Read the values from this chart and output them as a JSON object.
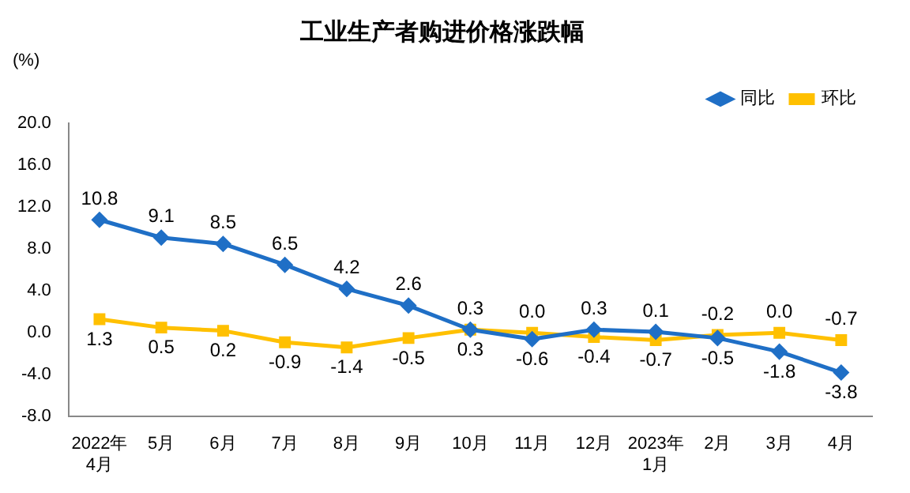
{
  "chart_data": {
    "type": "line",
    "title": "工业生产者购进价格涨跌幅",
    "ylabel": "(%)",
    "categories": [
      "2022年\n4月",
      "5月",
      "6月",
      "7月",
      "8月",
      "9月",
      "10月",
      "11月",
      "12月",
      "2023年\n1月",
      "2月",
      "3月",
      "4月"
    ],
    "series": [
      {
        "name": "同比",
        "color": "#1f6fc6",
        "marker": "diamond",
        "values": [
          10.8,
          9.1,
          8.5,
          6.5,
          4.2,
          2.6,
          0.3,
          -0.6,
          0.3,
          0.1,
          -0.5,
          -1.8,
          -3.8
        ],
        "value_labels": [
          "10.8",
          "9.1",
          "8.5",
          "6.5",
          "4.2",
          "2.6",
          "0.3",
          "-0.6",
          "0.3",
          "0.1",
          "-0.5",
          "-1.8",
          "-3.8"
        ]
      },
      {
        "name": "环比",
        "color": "#ffc000",
        "marker": "square",
        "values": [
          1.3,
          0.5,
          0.2,
          -0.9,
          -1.4,
          -0.5,
          0.3,
          0.0,
          -0.4,
          -0.7,
          -0.2,
          0.0,
          -0.7
        ],
        "value_labels": [
          "1.3",
          "0.5",
          "0.2",
          "-0.9",
          "-1.4",
          "-0.5",
          "0.3",
          "0.0",
          "-0.4",
          "-0.7",
          "-0.2",
          "0.0",
          "-0.7"
        ]
      }
    ],
    "ylim": [
      -8,
      20
    ],
    "yticks": [
      {
        "value": -8,
        "label": "-8.0"
      },
      {
        "value": -4,
        "label": "-4.0"
      },
      {
        "value": 0,
        "label": "0.0"
      },
      {
        "value": 4,
        "label": "4.0"
      },
      {
        "value": 8,
        "label": "8.0"
      },
      {
        "value": 12,
        "label": "12.0"
      },
      {
        "value": 16,
        "label": "16.0"
      },
      {
        "value": 20,
        "label": "20.0"
      }
    ],
    "grid": false,
    "legend": "top right",
    "line_style": "solid"
  }
}
